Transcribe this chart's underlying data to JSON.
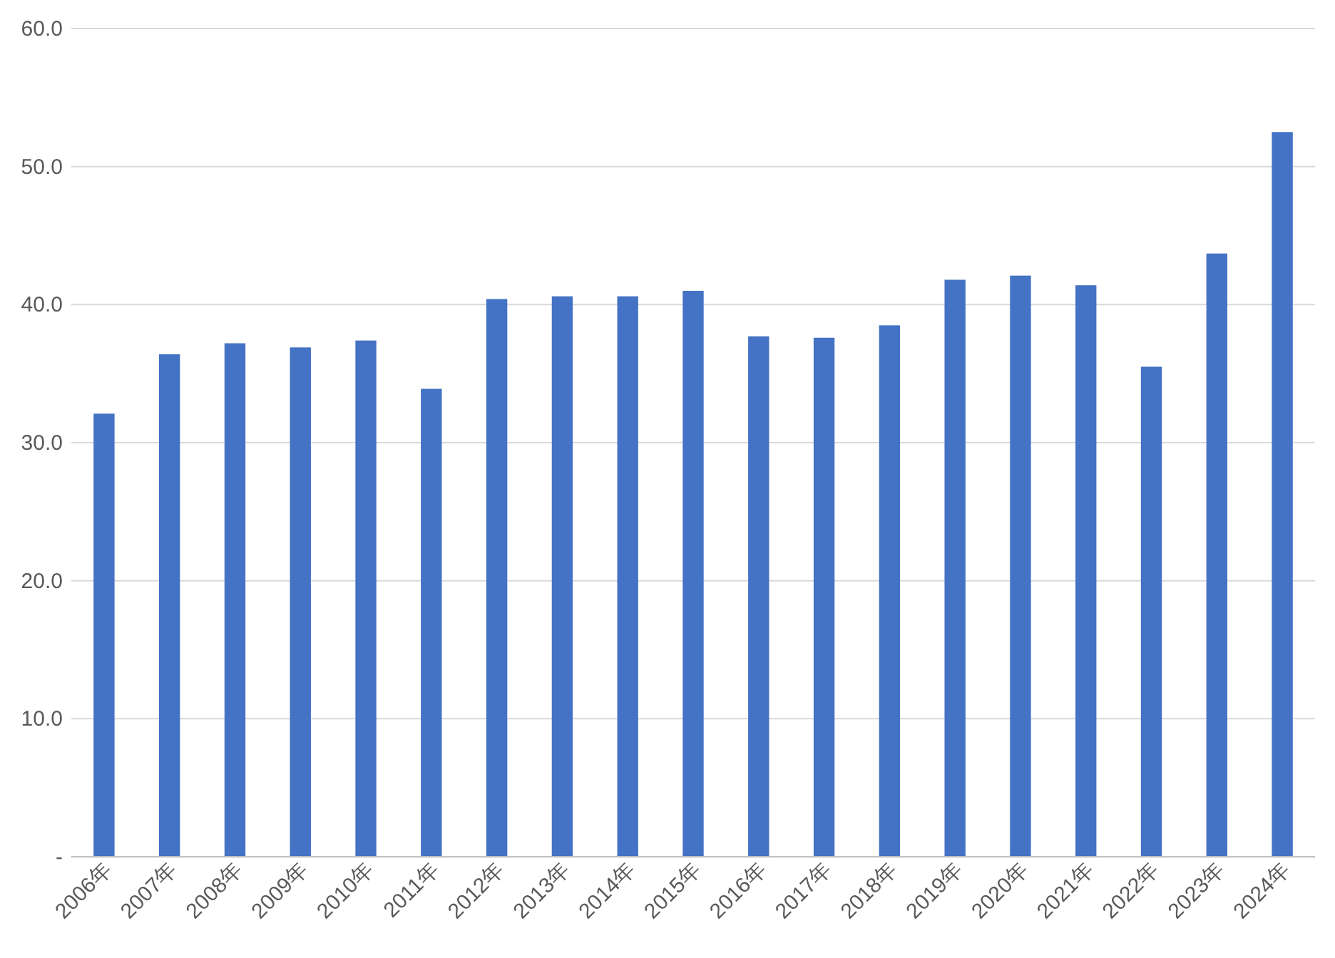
{
  "chart_data": {
    "type": "bar",
    "categories": [
      "2006年",
      "2007年",
      "2008年",
      "2009年",
      "2010年",
      "2011年",
      "2012年",
      "2013年",
      "2014年",
      "2015年",
      "2016年",
      "2017年",
      "2018年",
      "2019年",
      "2020年",
      "2021年",
      "2022年",
      "2023年",
      "2024年"
    ],
    "values": [
      32.1,
      36.4,
      37.2,
      36.9,
      37.4,
      33.9,
      40.4,
      40.6,
      40.6,
      41.0,
      37.7,
      37.6,
      38.5,
      41.8,
      42.1,
      41.4,
      35.5,
      43.7,
      52.5
    ],
    "color": "#4472c4",
    "ylim": [
      0,
      60
    ],
    "yticks": [
      {
        "value": 0,
        "label": "-"
      },
      {
        "value": 10,
        "label": "10.0"
      },
      {
        "value": 20,
        "label": "20.0"
      },
      {
        "value": 30,
        "label": "30.0"
      },
      {
        "value": 40,
        "label": "40.0"
      },
      {
        "value": 50,
        "label": "50.0"
      },
      {
        "value": 60,
        "label": "60.0"
      }
    ],
    "grid": "y"
  }
}
